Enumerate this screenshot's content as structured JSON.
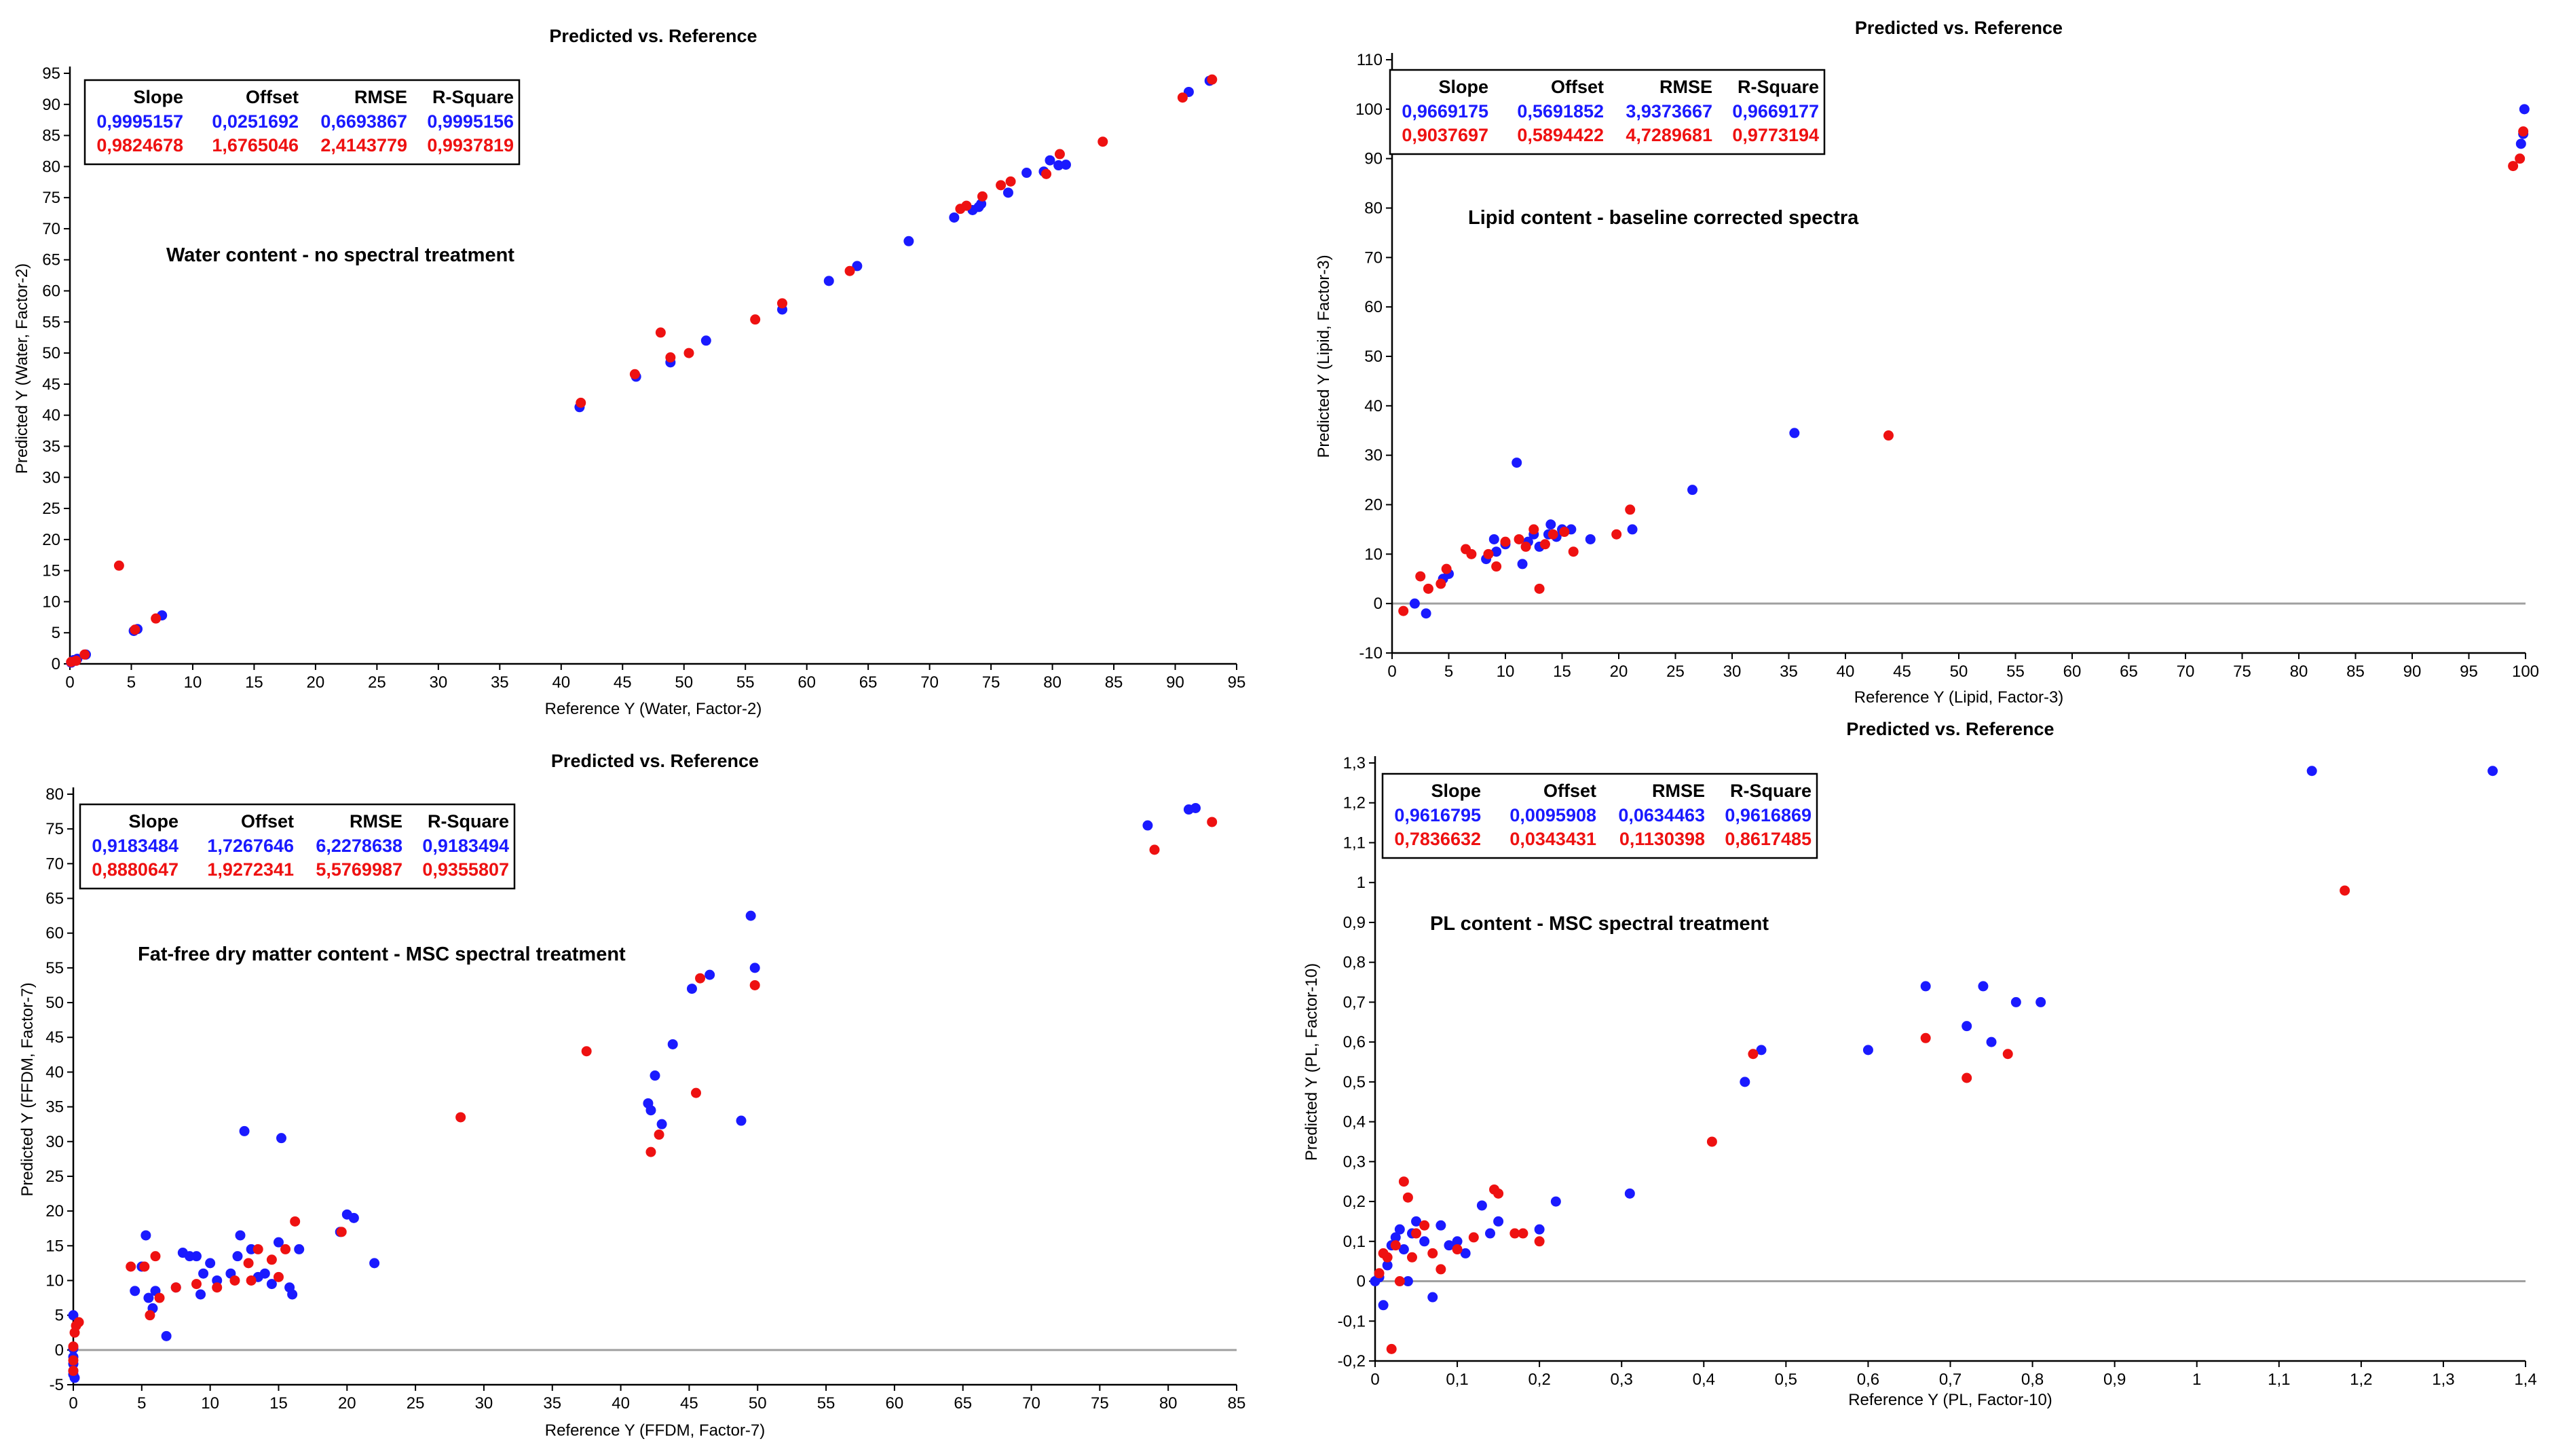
{
  "colors": {
    "blue": "#1a1aff",
    "red": "#ee1111",
    "axis": "#000000",
    "zero_line": "#a0a0a0"
  },
  "chart_data": [
    {
      "type": "scatter",
      "title": "Predicted vs. Reference",
      "xlabel": "Reference Y (Water, Factor-2)",
      "ylabel": "Predicted Y (Water, Factor-2)",
      "annotation": "Water content - no spectral treatment",
      "xlim": [
        0,
        95
      ],
      "ylim": [
        0,
        95
      ],
      "xticks": [
        "0",
        "5",
        "10",
        "15",
        "20",
        "25",
        "30",
        "35",
        "40",
        "45",
        "50",
        "55",
        "60",
        "65",
        "70",
        "75",
        "80",
        "85",
        "90",
        "95"
      ],
      "yticks": [
        "0",
        "5",
        "10",
        "15",
        "20",
        "25",
        "30",
        "35",
        "40",
        "45",
        "50",
        "55",
        "60",
        "65",
        "70",
        "75",
        "80",
        "85",
        "90",
        "95"
      ],
      "zero_line": false,
      "stats": {
        "headers": [
          "Slope",
          "Offset",
          "RMSE",
          "R-Square"
        ],
        "rows": [
          {
            "color": "blue",
            "values": [
              "0,9995157",
              "0,0251692",
              "0,6693867",
              "0,9995156"
            ]
          },
          {
            "color": "red",
            "values": [
              "0,9824678",
              "1,6765046",
              "2,4143779",
              "0,9937819"
            ]
          }
        ]
      },
      "series": [
        {
          "name": "blue",
          "color": "blue",
          "x": [
            0.1,
            0.3,
            0.6,
            1.3,
            5.2,
            5.5,
            7.5,
            41.5,
            46.1,
            48.9,
            51.8,
            58.0,
            61.8,
            64.1,
            68.3,
            72.0,
            73.5,
            74.0,
            74.2,
            76.4,
            77.9,
            79.3,
            79.8,
            80.5,
            81.1,
            91.1,
            92.8
          ],
          "y": [
            0.2,
            0.6,
            0.8,
            1.5,
            5.3,
            5.6,
            7.8,
            41.3,
            46.2,
            48.5,
            52.0,
            57.0,
            61.6,
            64.0,
            68.0,
            71.8,
            73.0,
            73.5,
            74.0,
            75.8,
            79.0,
            79.2,
            81.0,
            80.2,
            80.3,
            92.0,
            93.8
          ]
        },
        {
          "name": "red",
          "color": "red",
          "x": [
            0.1,
            0.5,
            1.2,
            4.0,
            5.3,
            7.0,
            41.6,
            46.0,
            48.1,
            48.9,
            50.4,
            55.8,
            58.0,
            63.5,
            72.5,
            73.0,
            74.3,
            75.8,
            76.6,
            79.5,
            80.6,
            84.1,
            90.6,
            93.0
          ],
          "y": [
            0.3,
            0.5,
            1.5,
            15.8,
            5.5,
            7.3,
            42.0,
            46.6,
            53.3,
            49.3,
            50.0,
            55.4,
            58.0,
            63.2,
            73.2,
            73.7,
            75.2,
            77.0,
            77.6,
            78.8,
            82.0,
            84.0,
            91.1,
            94.0
          ]
        }
      ]
    },
    {
      "type": "scatter",
      "title": "Predicted vs. Reference",
      "xlabel": "Reference Y (Lipid, Factor-3)",
      "ylabel": "Predicted Y (Lipid, Factor-3)",
      "annotation": "Lipid content - baseline corrected spectra",
      "xlim": [
        0,
        100
      ],
      "ylim": [
        -10,
        110
      ],
      "xticks": [
        "0",
        "5",
        "10",
        "15",
        "20",
        "25",
        "30",
        "35",
        "40",
        "45",
        "50",
        "55",
        "60",
        "65",
        "70",
        "75",
        "80",
        "85",
        "90",
        "95",
        "100"
      ],
      "yticks": [
        "-10",
        "0",
        "10",
        "20",
        "30",
        "40",
        "50",
        "60",
        "70",
        "80",
        "90",
        "100",
        "110"
      ],
      "zero_line": true,
      "stats": {
        "headers": [
          "Slope",
          "Offset",
          "RMSE",
          "R-Square"
        ],
        "rows": [
          {
            "color": "blue",
            "values": [
              "0,9669175",
              "0,5691852",
              "3,9373667",
              "0,9669177"
            ]
          },
          {
            "color": "red",
            "values": [
              "0,9037697",
              "0,5894422",
              "4,7289681",
              "0,9773194"
            ]
          }
        ]
      },
      "series": [
        {
          "name": "blue",
          "color": "blue",
          "x": [
            2.0,
            3.0,
            4.5,
            5.0,
            8.3,
            9.0,
            9.2,
            10.0,
            11.0,
            11.5,
            12.0,
            12.5,
            13.0,
            13.8,
            14.0,
            14.5,
            15.0,
            15.8,
            17.5,
            21.2,
            26.5,
            35.5,
            99.9,
            99.8,
            99.6
          ],
          "y": [
            0.0,
            -2.0,
            5.0,
            6.0,
            9.0,
            13.0,
            10.5,
            12.0,
            28.5,
            8.0,
            12.5,
            14.0,
            11.5,
            14.0,
            16.0,
            13.5,
            15.0,
            15.0,
            13.0,
            15.0,
            23.0,
            34.5,
            100.0,
            95.0,
            93.0
          ]
        },
        {
          "name": "red",
          "color": "red",
          "x": [
            1.0,
            2.5,
            3.2,
            4.3,
            4.8,
            6.5,
            7.0,
            8.5,
            9.2,
            10.0,
            11.2,
            11.8,
            12.5,
            13.0,
            13.5,
            14.2,
            15.2,
            16.0,
            19.8,
            21.0,
            43.8,
            98.9,
            99.5,
            99.8
          ],
          "y": [
            -1.5,
            5.5,
            3.0,
            4.0,
            7.0,
            11.0,
            10.0,
            10.0,
            7.5,
            12.5,
            13.0,
            11.5,
            15.0,
            3.0,
            12.0,
            14.0,
            14.5,
            10.5,
            14.0,
            19.0,
            34.0,
            88.5,
            90.0,
            95.5
          ]
        }
      ]
    },
    {
      "type": "scatter",
      "title": "Predicted vs. Reference",
      "xlabel": "Reference Y (FFDM, Factor-7)",
      "ylabel": "Predicted Y (FFDM, Factor-7)",
      "annotation": "Fat-free dry matter content - MSC spectral treatment",
      "xlim": [
        0,
        85
      ],
      "ylim": [
        -5,
        80
      ],
      "xticks": [
        "0",
        "5",
        "10",
        "15",
        "20",
        "25",
        "30",
        "35",
        "40",
        "45",
        "50",
        "55",
        "60",
        "65",
        "70",
        "75",
        "80",
        "85"
      ],
      "yticks": [
        "-5",
        "0",
        "5",
        "10",
        "15",
        "20",
        "25",
        "30",
        "35",
        "40",
        "45",
        "50",
        "55",
        "60",
        "65",
        "70",
        "75",
        "80"
      ],
      "zero_line": true,
      "stats": {
        "headers": [
          "Slope",
          "Offset",
          "RMSE",
          "R-Square"
        ],
        "rows": [
          {
            "color": "blue",
            "values": [
              "0,9183484",
              "1,7267646",
              "6,2278638",
              "0,9183494"
            ]
          },
          {
            "color": "red",
            "values": [
              "0,8880647",
              "1,9272341",
              "5,5769987",
              "0,9355807"
            ]
          }
        ]
      },
      "series": [
        {
          "name": "blue",
          "color": "blue",
          "x": [
            0.0,
            0.0,
            0.0,
            0.0,
            0.0,
            0.0,
            0.1,
            4.5,
            5.0,
            5.3,
            5.5,
            5.8,
            6.0,
            6.8,
            7.5,
            8.0,
            8.5,
            9.0,
            9.3,
            9.5,
            10.0,
            10.5,
            11.5,
            12.0,
            12.2,
            12.5,
            13.0,
            13.5,
            14.0,
            14.5,
            15.0,
            15.2,
            15.8,
            16.0,
            16.5,
            19.5,
            20.0,
            20.5,
            22.0,
            42.0,
            42.2,
            42.5,
            43.0,
            43.8,
            45.2,
            46.5,
            48.8,
            49.5,
            49.8,
            78.5,
            81.5,
            82.0
          ],
          "y": [
            5.0,
            0.2,
            -1.0,
            -2.0,
            -3.0,
            -3.5,
            -4.0,
            8.5,
            12.0,
            16.5,
            7.5,
            6.0,
            8.5,
            2.0,
            9.0,
            14.0,
            13.5,
            13.5,
            8.0,
            11.0,
            12.5,
            10.0,
            11.0,
            13.5,
            16.5,
            31.5,
            14.5,
            10.5,
            11.0,
            9.5,
            15.5,
            30.5,
            9.0,
            8.0,
            14.5,
            17.0,
            19.5,
            19.0,
            12.5,
            35.5,
            34.5,
            39.5,
            32.5,
            44.0,
            52.0,
            54.0,
            33.0,
            62.5,
            55.0,
            75.5,
            77.8,
            78.0
          ]
        },
        {
          "name": "red",
          "color": "red",
          "x": [
            0.0,
            0.0,
            0.0,
            0.1,
            0.2,
            0.4,
            4.2,
            5.2,
            5.6,
            6.0,
            6.3,
            7.5,
            9.0,
            10.5,
            11.8,
            12.8,
            13.0,
            13.5,
            14.5,
            15.0,
            15.5,
            16.2,
            19.6,
            28.3,
            37.5,
            42.2,
            42.8,
            45.5,
            45.8,
            49.8,
            79.0,
            83.2
          ],
          "y": [
            -3.0,
            -1.5,
            0.5,
            2.5,
            3.5,
            4.0,
            12.0,
            12.0,
            5.0,
            13.5,
            7.5,
            9.0,
            9.5,
            9.0,
            10.0,
            12.5,
            10.0,
            14.5,
            13.0,
            10.5,
            14.5,
            18.5,
            17.0,
            33.5,
            43.0,
            28.5,
            31.0,
            37.0,
            53.5,
            52.5,
            72.0,
            76.0
          ]
        }
      ]
    },
    {
      "type": "scatter",
      "title": "Predicted vs. Reference",
      "xlabel": "Reference Y (PL, Factor-10)",
      "ylabel": "Predicted Y (PL, Factor-10)",
      "annotation": "PL content - MSC spectral treatment",
      "xlim": [
        0,
        1.4
      ],
      "ylim": [
        -0.2,
        1.3
      ],
      "xticks": [
        "0",
        "0,1",
        "0,2",
        "0,3",
        "0,4",
        "0,5",
        "0,6",
        "0,7",
        "0,8",
        "0,9",
        "1",
        "1,1",
        "1,2",
        "1,3",
        "1,4"
      ],
      "yticks": [
        "-0,2",
        "-0,1",
        "0",
        "0,1",
        "0,2",
        "0,3",
        "0,4",
        "0,5",
        "0,6",
        "0,7",
        "0,8",
        "0,9",
        "1",
        "1,1",
        "1,2",
        "1,3"
      ],
      "zero_line": true,
      "stats": {
        "headers": [
          "Slope",
          "Offset",
          "RMSE",
          "R-Square"
        ],
        "rows": [
          {
            "color": "blue",
            "values": [
              "0,9616795",
              "0,0095908",
              "0,0634463",
              "0,9616869"
            ]
          },
          {
            "color": "red",
            "values": [
              "0,7836632",
              "0,0343431",
              "0,1130398",
              "0,8617485"
            ]
          }
        ]
      },
      "series": [
        {
          "name": "blue",
          "color": "blue",
          "x": [
            0.0,
            0.005,
            0.01,
            0.015,
            0.02,
            0.025,
            0.03,
            0.035,
            0.04,
            0.045,
            0.05,
            0.06,
            0.07,
            0.08,
            0.09,
            0.1,
            0.11,
            0.13,
            0.14,
            0.15,
            0.2,
            0.22,
            0.31,
            0.45,
            0.47,
            0.6,
            0.67,
            0.72,
            0.74,
            0.75,
            0.78,
            0.81,
            1.14,
            1.36
          ],
          "y": [
            0.0,
            0.01,
            -0.06,
            0.04,
            0.09,
            0.11,
            0.13,
            0.08,
            0.0,
            0.12,
            0.15,
            0.1,
            -0.04,
            0.14,
            0.09,
            0.1,
            0.07,
            0.19,
            0.12,
            0.15,
            0.13,
            0.2,
            0.22,
            0.5,
            0.58,
            0.58,
            0.74,
            0.64,
            0.74,
            0.6,
            0.7,
            0.7,
            1.28,
            1.28
          ]
        },
        {
          "name": "red",
          "color": "red",
          "x": [
            0.005,
            0.01,
            0.015,
            0.02,
            0.025,
            0.03,
            0.035,
            0.04,
            0.045,
            0.05,
            0.06,
            0.07,
            0.08,
            0.1,
            0.12,
            0.145,
            0.15,
            0.17,
            0.18,
            0.2,
            0.41,
            0.46,
            0.67,
            0.72,
            0.77,
            1.18
          ],
          "y": [
            0.02,
            0.07,
            0.06,
            -0.17,
            0.09,
            0.0,
            0.25,
            0.21,
            0.06,
            0.12,
            0.14,
            0.07,
            0.03,
            0.08,
            0.11,
            0.23,
            0.22,
            0.12,
            0.12,
            0.1,
            0.35,
            0.57,
            0.61,
            0.51,
            0.57,
            0.98
          ]
        }
      ]
    }
  ]
}
